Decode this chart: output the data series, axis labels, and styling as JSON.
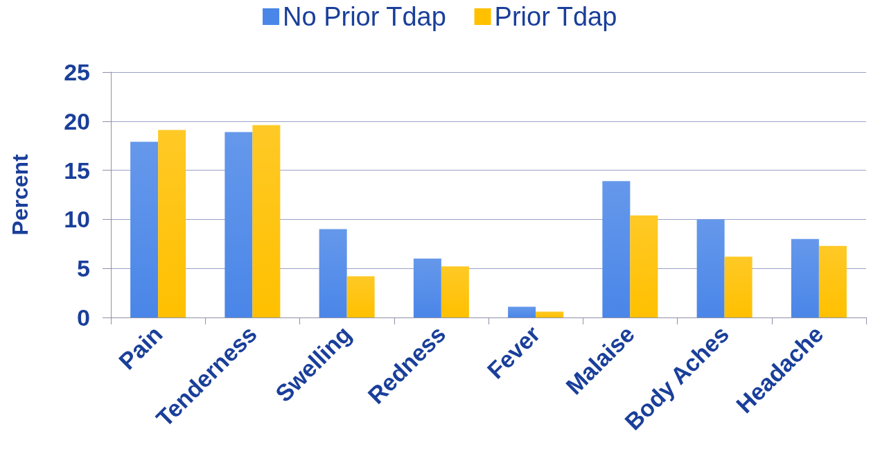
{
  "chart_data": {
    "type": "bar",
    "ylabel": "Percent",
    "categories": [
      "Pain",
      "Tenderness",
      "Swelling",
      "Redness",
      "Fever",
      "Malaise",
      "Body Aches",
      "Headache"
    ],
    "series": [
      {
        "name": "No Prior Tdap",
        "color": "#4a86e8",
        "values": [
          17.9,
          18.9,
          9.0,
          6.0,
          1.1,
          13.9,
          10.0,
          8.0
        ]
      },
      {
        "name": "Prior Tdap",
        "color": "#ffc000",
        "values": [
          19.1,
          19.6,
          4.2,
          5.2,
          0.6,
          10.4,
          6.2,
          7.3
        ]
      }
    ],
    "ylim": [
      0,
      25
    ],
    "yticks": [
      0,
      5,
      10,
      15,
      20,
      25
    ],
    "grid": "y",
    "legend": "top"
  }
}
